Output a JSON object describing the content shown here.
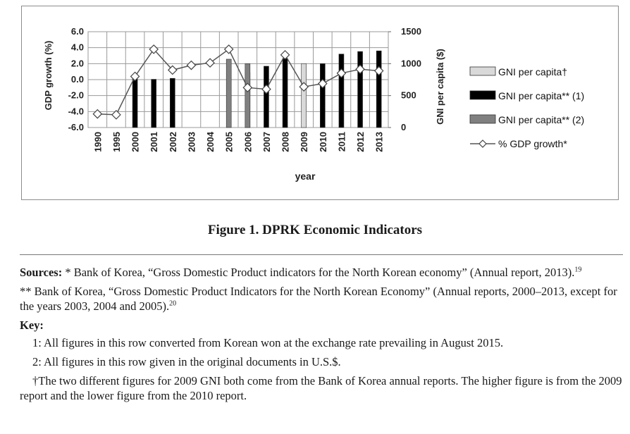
{
  "chart_data": {
    "type": "bar",
    "categories": [
      "1990",
      "1995",
      "2000",
      "2001",
      "2002",
      "2003",
      "2004",
      "2005",
      "2006",
      "2007",
      "2008",
      "2009",
      "2010",
      "2011",
      "2012",
      "2013"
    ],
    "xlabel": "year",
    "ylabel_left": "GDP growth (%)",
    "ylabel_right": "GNI per capita ($)",
    "ylim_left": [
      -6.0,
      6.0
    ],
    "ylim_right": [
      0,
      1500
    ],
    "left_ticks": [
      "6.0",
      "4.0",
      "2.0",
      "0.0",
      "-2.0",
      "-4.0",
      "-6.0"
    ],
    "right_ticks": [
      "1500",
      "1000",
      "500",
      "0"
    ],
    "grid": true,
    "legend_position": "right",
    "series": [
      {
        "name": "GNI per capita†",
        "kind": "bar",
        "axis": "right",
        "color": "#d9d9d9",
        "values": [
          null,
          null,
          null,
          null,
          null,
          null,
          null,
          null,
          null,
          null,
          null,
          1000,
          null,
          null,
          null,
          null
        ]
      },
      {
        "name": "GNI per capita** (1)",
        "kind": "bar",
        "axis": "right",
        "color": "#000000",
        "values": [
          null,
          null,
          760,
          755,
          770,
          null,
          null,
          null,
          860,
          960,
          1080,
          null,
          1000,
          1150,
          1190,
          1200
        ]
      },
      {
        "name": "GNI per capita** (2)",
        "kind": "bar",
        "axis": "right",
        "color": "#808080",
        "values": [
          null,
          null,
          null,
          null,
          null,
          null,
          null,
          1070,
          1000,
          null,
          null,
          null,
          null,
          null,
          null,
          null
        ]
      },
      {
        "name": "% GDP growth*",
        "kind": "line",
        "axis": "left",
        "color": "#555555",
        "values": [
          -4.3,
          -4.4,
          0.4,
          3.8,
          1.2,
          1.8,
          2.1,
          3.8,
          -1.0,
          -1.2,
          3.1,
          -0.9,
          -0.5,
          0.8,
          1.3,
          1.1
        ]
      }
    ]
  },
  "figure": {
    "caption": "Figure 1. DPRK Economic Indicators"
  },
  "notes": {
    "sources_label": "Sources:",
    "source1_text": " *  Bank of Korea, “Gross Domestic Product indicators for the North Korean economy” (Annual report, 2013).",
    "source1_ref": "19",
    "source2_text": "**  Bank of Korea, “Gross Domestic Product Indicators for the North Korean Economy” (Annual reports, 2000–2013, except for the years 2003, 2004 and 2005).",
    "source2_ref": "20",
    "key_label": "Key:",
    "key1": "1: All figures in this row converted from Korean won at the exchange rate prevailing in August 2015.",
    "key2": "2: All figures in this row given in the original documents in U.S.$.",
    "key3": "†The two different figures for 2009 GNI both come from the Bank of Korea annual reports. The higher figure is from the 2009 report and the lower figure from the 2010 report."
  }
}
